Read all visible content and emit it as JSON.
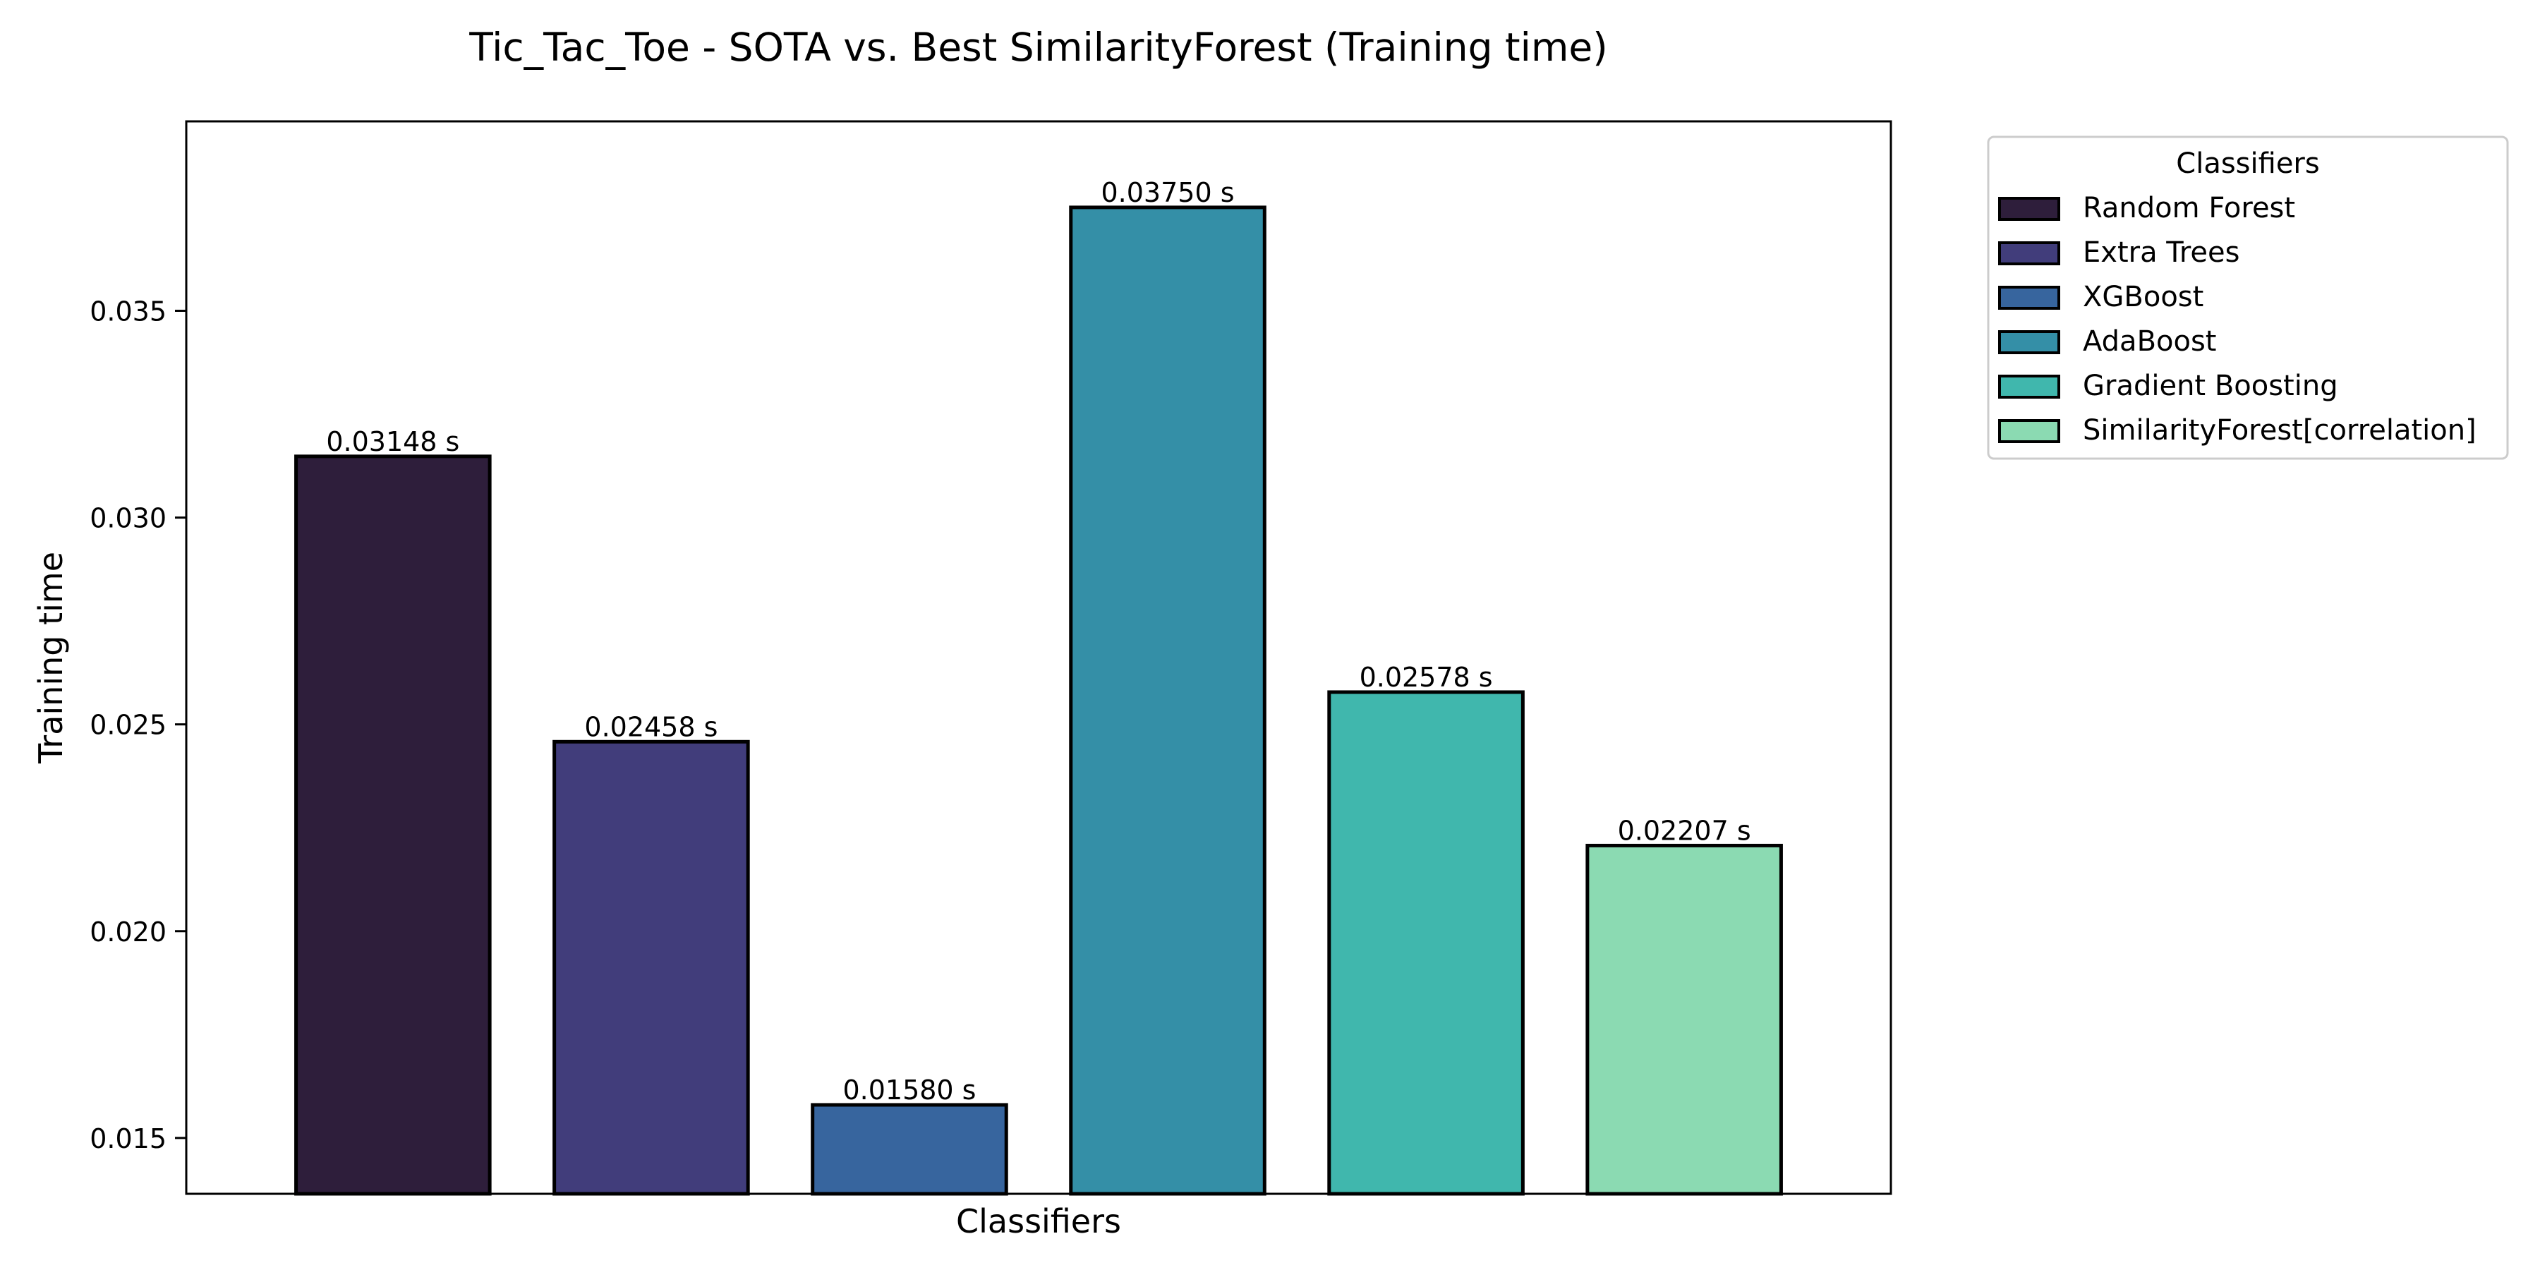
{
  "chart_data": {
    "type": "bar",
    "title": "Tic_Tac_Toe - SOTA vs. Best SimilarityForest (Training time)",
    "xlabel": "Classifiers",
    "ylabel": "Training time",
    "categories": [
      "Random Forest",
      "Extra Trees",
      "XGBoost",
      "AdaBoost",
      "Gradient Boosting",
      "SimilarityForest[correlation]"
    ],
    "values": [
      0.03148,
      0.02458,
      0.0158,
      0.0375,
      0.02578,
      0.02207
    ],
    "data_labels": [
      "0.03148 s",
      "0.02458 s",
      "0.01580 s",
      "0.03750 s",
      "0.02578 s",
      "0.02207 s"
    ],
    "colors": [
      "#2e1e3b",
      "#413d7b",
      "#37659e",
      "#348fa7",
      "#40b7ad",
      "#8bdab2"
    ],
    "ylim": [
      0.01365,
      0.03958
    ],
    "yticks": [
      0.015,
      0.02,
      0.025,
      0.03,
      0.035
    ],
    "ytick_labels": [
      "0.015",
      "0.020",
      "0.025",
      "0.030",
      "0.035"
    ],
    "x_tick_labels_shown": false,
    "grid": false,
    "legend": {
      "title": "Classifiers",
      "placement": "outside-right-top",
      "entries": [
        "Random Forest",
        "Extra Trees",
        "XGBoost",
        "AdaBoost",
        "Gradient Boosting",
        "SimilarityForest[correlation]"
      ]
    }
  }
}
